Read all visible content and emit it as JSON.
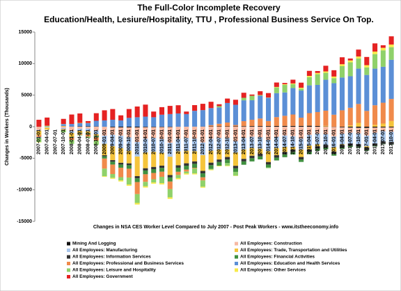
{
  "chart_data": {
    "type": "stacked_bar",
    "title": "The Full-Color Incomplete Recovery",
    "subtitle": "Education/Health, Lesiure/Hospitality, TTU , Professional Business Service On Top.",
    "xlabel": "Changes in NSA CES Worker Level Compared to July 2007 - Post Peak Workers - www.itstheeconomy.info",
    "ylabel": "Changes in Workers (Thousands)",
    "ylim": [
      -15000,
      15000
    ],
    "yticks": [
      -15000,
      -10000,
      -5000,
      0,
      5000,
      10000,
      15000
    ],
    "grid": false,
    "legend": "bottom",
    "categories": [
      "2007-01-01",
      "2007-04-01",
      "2007-07-01",
      "2007-10-01",
      "2008-01-01",
      "2008-04-01",
      "2008-07-01",
      "2008-10-01",
      "2009-01-01",
      "2009-04-01",
      "2009-07-01",
      "2009-10-01",
      "2010-01-01",
      "2010-04-01",
      "2010-07-01",
      "2010-10-01",
      "2011-01-01",
      "2011-04-01",
      "2011-07-01",
      "2011-10-01",
      "2012-01-01",
      "2012-04-01",
      "2012-07-01",
      "2012-10-01",
      "2013-01-01",
      "2013-04-01",
      "2013-07-01",
      "2013-10-01",
      "2014-01-01",
      "2014-04-01",
      "2014-07-01",
      "2014-10-01",
      "2015-01-01",
      "2015-04-01",
      "2015-07-01",
      "2015-10-01",
      "2016-01-01",
      "2016-04-01",
      "2016-07-01",
      "2016-10-01",
      "2017-01-01",
      "2017-04-01",
      "2017-07-01",
      "2017-10-01"
    ],
    "series": [
      {
        "name": "Mining And Logging",
        "color": "#111111",
        "values": [
          -20,
          10,
          0,
          20,
          30,
          50,
          60,
          40,
          -20,
          -100,
          -120,
          -110,
          -130,
          -90,
          -80,
          -70,
          -60,
          -20,
          0,
          20,
          30,
          50,
          60,
          60,
          70,
          80,
          100,
          100,
          100,
          120,
          130,
          130,
          130,
          150,
          120,
          40,
          -40,
          -100,
          -150,
          -180,
          -200,
          -150,
          -130,
          -110
        ]
      },
      {
        "name": "All Employees: Construction",
        "color": "#f6b9a3",
        "values": [
          -500,
          -50,
          0,
          -200,
          -700,
          -300,
          -300,
          -600,
          -1400,
          -1200,
          -1300,
          -1600,
          -2300,
          -1800,
          -1700,
          -1900,
          -2500,
          -1900,
          -1800,
          -1900,
          -2500,
          -1900,
          -1800,
          -1800,
          -2300,
          -1800,
          -1600,
          -1700,
          -2100,
          -1600,
          -1400,
          -1500,
          -1900,
          -1300,
          -1100,
          -1200,
          -1500,
          -1000,
          -800,
          -900,
          -1200,
          -800,
          -600,
          -700
        ]
      },
      {
        "name": "All Employees: Manufacturing",
        "color": "#a8c6ec",
        "values": [
          -100,
          -100,
          0,
          -150,
          -300,
          -350,
          -450,
          -600,
          -1300,
          -1800,
          -2000,
          -2100,
          -2300,
          -2200,
          -2200,
          -2200,
          -2200,
          -2000,
          -2000,
          -2000,
          -2000,
          -1900,
          -1800,
          -1800,
          -1800,
          -1800,
          -1800,
          -1800,
          -1800,
          -1800,
          -1800,
          -1700,
          -1700,
          -1700,
          -1700,
          -1700,
          -1700,
          -1700,
          -1700,
          -1700,
          -1700,
          -1700,
          -1600,
          -1600
        ]
      },
      {
        "name": "All Employees: Trade, Transportation and Utilities",
        "color": "#f5c43c",
        "values": [
          -700,
          -300,
          0,
          100,
          -600,
          -300,
          -300,
          -200,
          -1800,
          -2200,
          -2300,
          -2000,
          -3100,
          -2500,
          -2400,
          -2000,
          -2900,
          -2200,
          -2000,
          -1600,
          -2500,
          -1900,
          -1600,
          -1200,
          -2100,
          -1500,
          -1200,
          -800,
          -1700,
          -1100,
          -800,
          -400,
          -1200,
          -600,
          -300,
          100,
          -700,
          -100,
          200,
          600,
          -200,
          300,
          500,
          900
        ]
      },
      {
        "name": "All Employees: Information Services",
        "color": "#333333",
        "values": [
          -20,
          -10,
          0,
          -20,
          -40,
          -50,
          -70,
          -100,
          -180,
          -250,
          -280,
          -300,
          -350,
          -350,
          -350,
          -370,
          -380,
          -380,
          -380,
          -390,
          -400,
          -400,
          -400,
          -400,
          -400,
          -400,
          -400,
          -400,
          -400,
          -400,
          -400,
          -400,
          -400,
          -400,
          -400,
          -400,
          -400,
          -400,
          -400,
          -400,
          -400,
          -400,
          -400,
          -400
        ]
      },
      {
        "name": "All Employees: Financial Activities",
        "color": "#3f8f3f",
        "values": [
          0,
          10,
          0,
          -20,
          -80,
          -100,
          -150,
          -200,
          -350,
          -450,
          -500,
          -550,
          -600,
          -600,
          -600,
          -600,
          -650,
          -650,
          -620,
          -620,
          -620,
          -600,
          -580,
          -570,
          -560,
          -530,
          -500,
          -480,
          -470,
          -450,
          -430,
          -400,
          -380,
          -350,
          -300,
          -280,
          -250,
          -200,
          -170,
          -150,
          -100,
          -80,
          -50,
          -30
        ]
      },
      {
        "name": "All Employees: Professional and Business Services",
        "color": "#f08a4b",
        "values": [
          -300,
          0,
          0,
          -100,
          -400,
          -200,
          -300,
          -500,
          -1600,
          -1500,
          -1500,
          -1400,
          -1900,
          -1200,
          -1000,
          -800,
          -1200,
          -500,
          -300,
          -100,
          -500,
          200,
          400,
          600,
          200,
          800,
          1000,
          1200,
          800,
          1400,
          1600,
          1800,
          1300,
          2000,
          2200,
          2400,
          1900,
          2600,
          2800,
          3000,
          2500,
          3100,
          3300,
          3500
        ]
      },
      {
        "name": "All Employees: Education and Health Services",
        "color": "#5b8fd6",
        "values": [
          -100,
          0,
          0,
          300,
          400,
          500,
          500,
          900,
          1000,
          1100,
          1000,
          1400,
          1500,
          1600,
          1500,
          1900,
          2000,
          2100,
          2000,
          2500,
          2600,
          2700,
          2600,
          3100,
          3200,
          3300,
          3100,
          3600,
          3700,
          3800,
          3700,
          4200,
          4300,
          4400,
          4300,
          4900,
          5000,
          5200,
          5000,
          5600,
          5700,
          5800,
          5700,
          6200
        ]
      },
      {
        "name": "All Employees: Leisure and Hospitality",
        "color": "#8fd16a",
        "values": [
          -700,
          100,
          0,
          -400,
          -600,
          -100,
          -200,
          -700,
          -1200,
          -600,
          -500,
          -1100,
          -1400,
          -700,
          -500,
          -1000,
          -1300,
          -500,
          -300,
          -800,
          -1000,
          -100,
          200,
          -400,
          -600,
          400,
          700,
          100,
          -100,
          900,
          1200,
          600,
          300,
          1300,
          1700,
          1100,
          800,
          1800,
          2200,
          1600,
          1200,
          2300,
          2600,
          2000
        ]
      },
      {
        "name": "All Employees: Other Services",
        "color": "#f7ea4a",
        "values": [
          -50,
          30,
          0,
          20,
          0,
          50,
          30,
          0,
          -100,
          -150,
          -180,
          -200,
          -250,
          -200,
          -200,
          -200,
          -250,
          -180,
          -180,
          -150,
          -150,
          -100,
          -100,
          -80,
          -50,
          0,
          0,
          20,
          30,
          80,
          100,
          120,
          150,
          200,
          200,
          220,
          250,
          300,
          300,
          320,
          350,
          400,
          400,
          420
        ]
      },
      {
        "name": "All Employees: Government",
        "color": "#e52222",
        "values": [
          1100,
          1300,
          0,
          800,
          1500,
          1500,
          300,
          1200,
          1600,
          1700,
          800,
          1400,
          1700,
          1900,
          900,
          1200,
          1300,
          1300,
          400,
          900,
          1000,
          1000,
          300,
          700,
          800,
          800,
          200,
          600,
          700,
          700,
          200,
          600,
          800,
          800,
          300,
          900,
          1000,
          1100,
          300,
          1100,
          1300,
          1300,
          400,
          1300
        ]
      }
    ]
  }
}
